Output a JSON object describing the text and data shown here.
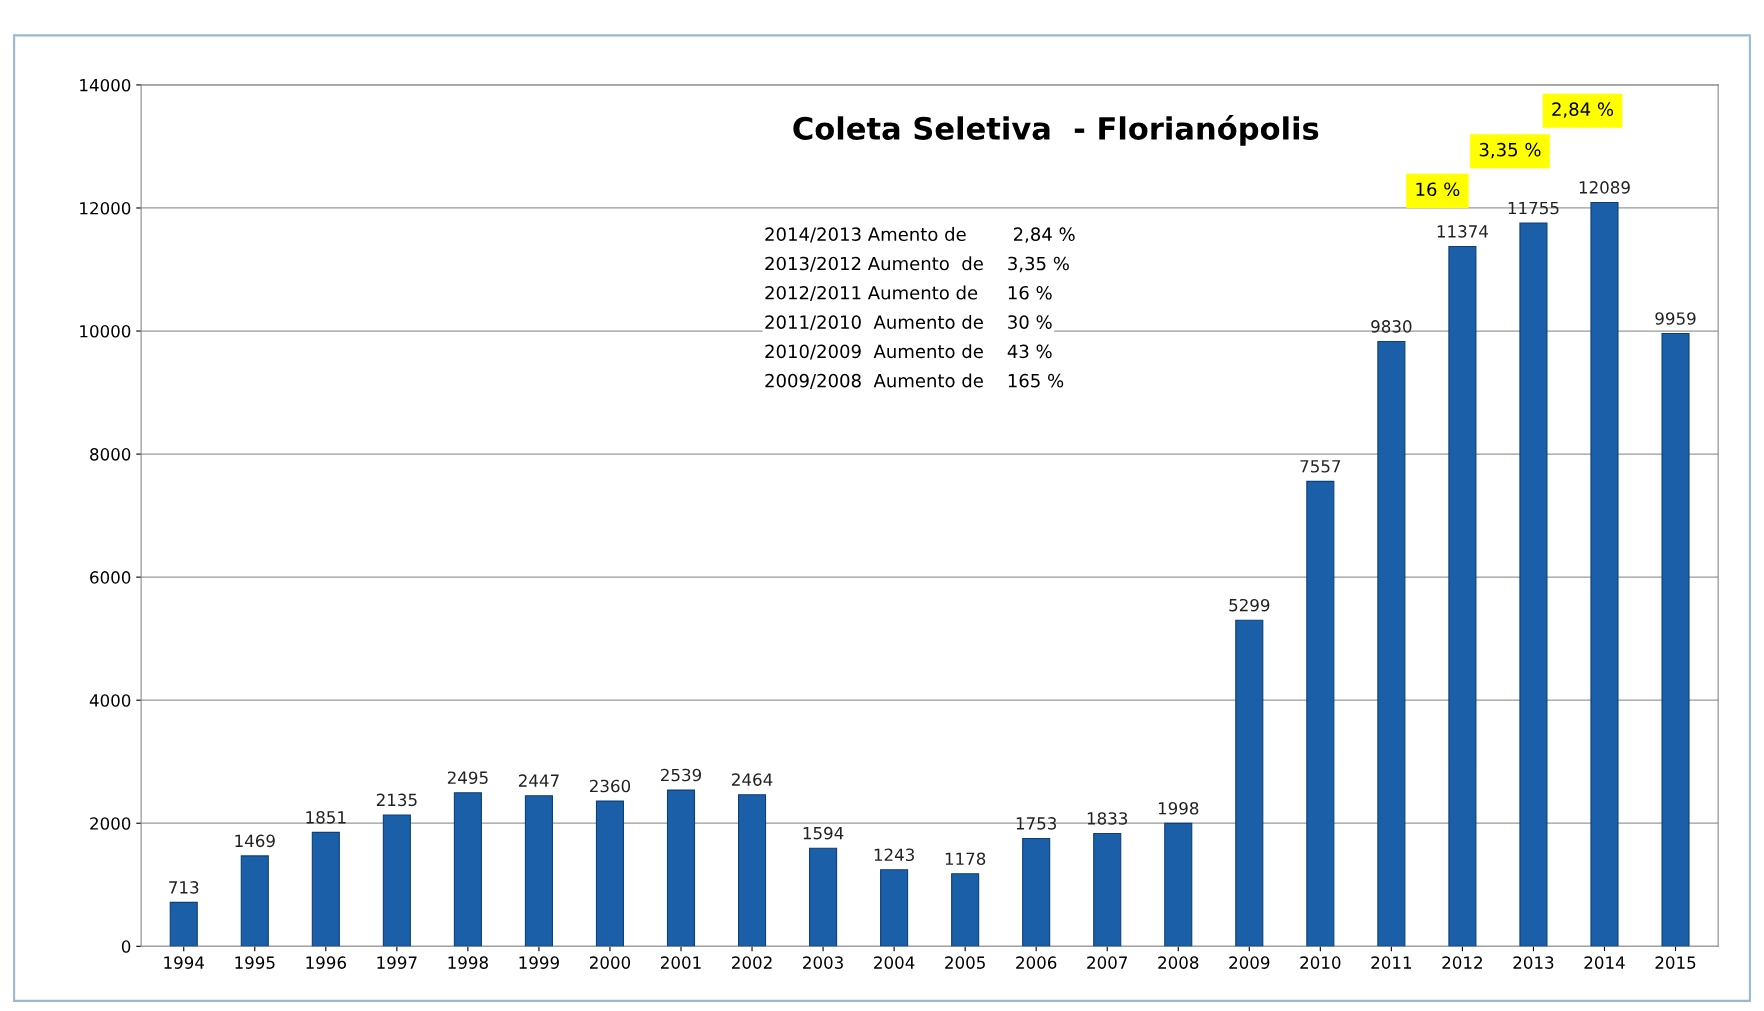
{
  "chart_data": {
    "type": "bar",
    "title": "Coleta Seletiva  - Florianópolis",
    "categories": [
      "1994",
      "1995",
      "1996",
      "1997",
      "1998",
      "1999",
      "2000",
      "2001",
      "2002",
      "2003",
      "2004",
      "2005",
      "2006",
      "2007",
      "2008",
      "2009",
      "2010",
      "2011",
      "2012",
      "2013",
      "2014",
      "2015"
    ],
    "values": [
      713,
      1469,
      1851,
      2135,
      2495,
      2447,
      2360,
      2539,
      2464,
      1594,
      1243,
      1178,
      1753,
      1833,
      1998,
      5299,
      7557,
      9830,
      11374,
      11755,
      12089,
      9959
    ],
    "color": "#1a5fa8",
    "data_labels": true,
    "ylim": [
      0,
      14000
    ],
    "yticks": [
      0,
      2000,
      4000,
      6000,
      8000,
      10000,
      12000,
      14000
    ],
    "grid": "y",
    "legend": false,
    "annotations": [
      "2014/2013 Amento de        2,84 %",
      "2013/2012 Aumento  de    3,35 %",
      "2012/2011 Aumento de     16 %",
      "2011/2010  Aumento de    30 %",
      "2010/2009  Aumento de    43 %",
      "2009/2008  Aumento de    165 %",
      "16 %",
      "3,35 %",
      "2,84 %"
    ]
  }
}
